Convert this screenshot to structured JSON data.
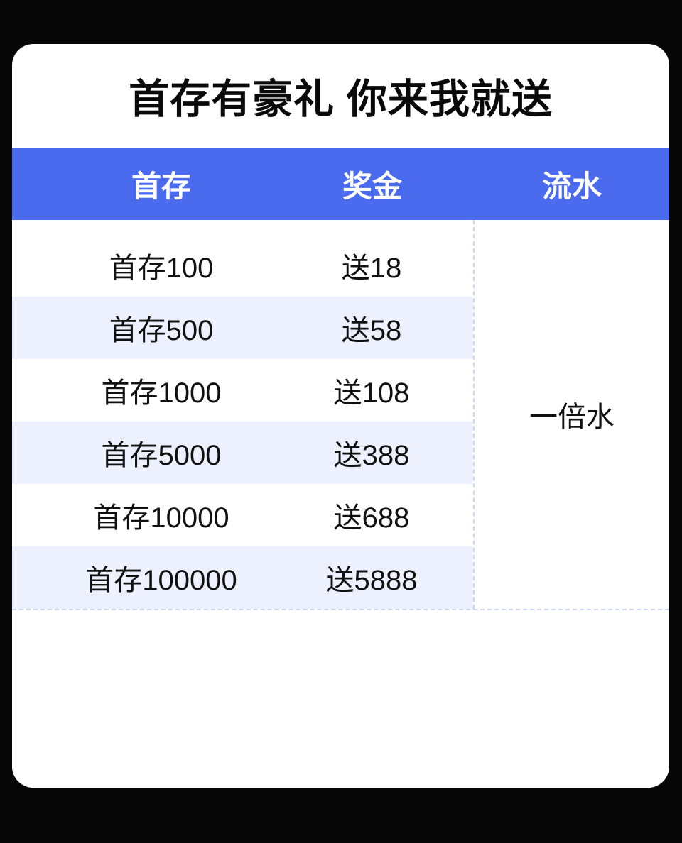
{
  "theme": {
    "page_bg": "#060606",
    "card_bg": "#ffffff",
    "title_color": "#0a0a0a",
    "header_bg": "#4b6bef",
    "header_text": "#ffffff",
    "stripe_bg": "#edf1fd",
    "divider_color": "#ccd6f0",
    "body_text": "#111111"
  },
  "title": "首存有豪礼 你来我就送",
  "table": {
    "header": {
      "columns": [
        "首存",
        "奖金",
        "流水"
      ]
    },
    "rows": [
      {
        "deposit": "首存100",
        "bonus": "送18"
      },
      {
        "deposit": "首存500",
        "bonus": "送58"
      },
      {
        "deposit": "首存1000",
        "bonus": "送108"
      },
      {
        "deposit": "首存5000",
        "bonus": "送388"
      },
      {
        "deposit": "首存10000",
        "bonus": "送688"
      },
      {
        "deposit": "首存100000",
        "bonus": "送5888"
      }
    ],
    "turnover": "一倍水"
  },
  "chart_data": {
    "type": "table",
    "title": "首存有豪礼 你来我就送",
    "columns": [
      "首存",
      "奖金",
      "流水"
    ],
    "rows": [
      [
        "首存100",
        "送18"
      ],
      [
        "首存500",
        "送58"
      ],
      [
        "首存1000",
        "送108"
      ],
      [
        "首存5000",
        "送388"
      ],
      [
        "首存10000",
        "送688"
      ],
      [
        "首存100000",
        "送5888"
      ]
    ],
    "merged_cell": {
      "column": "流水",
      "value": "一倍水",
      "spans_all_rows": true
    },
    "layout_hints": {
      "header_background": "#4b6bef",
      "alternating_row_stripes": true,
      "stripe_rows": [
        2,
        4,
        6
      ],
      "dividers": "dashed light lavender"
    }
  }
}
